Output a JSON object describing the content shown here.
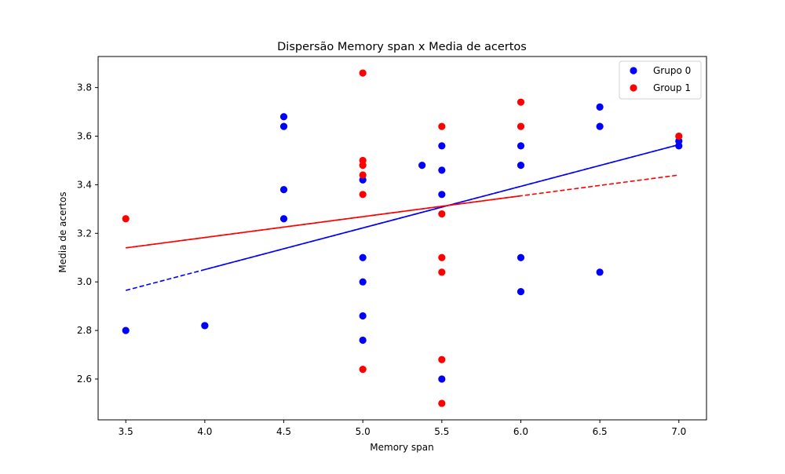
{
  "chart_data": {
    "type": "scatter",
    "title": "Dispersão Memory span x Media de acertos",
    "xlabel": "Memory span",
    "ylabel": "Media de acertos",
    "xlim": [
      3.325,
      7.175
    ],
    "ylim": [
      2.432,
      3.928
    ],
    "xticks": [
      "3.5",
      "4.0",
      "4.5",
      "5.0",
      "5.5",
      "6.0",
      "6.5",
      "7.0"
    ],
    "yticks": [
      "2.6",
      "2.8",
      "3.0",
      "3.2",
      "3.4",
      "3.6",
      "3.8"
    ],
    "grid": false,
    "legend_position": "top-right",
    "series": [
      {
        "name": "Grupo 0",
        "color": "#0000ff",
        "points": [
          [
            3.5,
            2.8
          ],
          [
            4.0,
            2.82
          ],
          [
            4.0,
            2.82
          ],
          [
            4.5,
            3.68
          ],
          [
            4.5,
            3.64
          ],
          [
            4.5,
            3.38
          ],
          [
            4.5,
            3.26
          ],
          [
            5.0,
            3.42
          ],
          [
            5.0,
            3.1
          ],
          [
            5.0,
            3.0
          ],
          [
            5.0,
            2.86
          ],
          [
            5.0,
            2.76
          ],
          [
            5.375,
            3.48
          ],
          [
            5.5,
            3.56
          ],
          [
            5.5,
            3.46
          ],
          [
            5.5,
            3.36
          ],
          [
            5.5,
            2.6
          ],
          [
            6.0,
            3.56
          ],
          [
            6.0,
            3.48
          ],
          [
            6.0,
            3.1
          ],
          [
            6.0,
            2.96
          ],
          [
            6.5,
            3.72
          ],
          [
            6.5,
            3.64
          ],
          [
            6.5,
            3.04
          ],
          [
            7.0,
            3.58
          ],
          [
            7.0,
            3.56
          ]
        ],
        "trend": {
          "x_start": 3.5,
          "x_end": 7.0,
          "y_start": 2.965,
          "y_end": 3.565
        }
      },
      {
        "name": "Group 1",
        "color": "#ff0000",
        "points": [
          [
            3.5,
            3.26
          ],
          [
            5.0,
            3.86
          ],
          [
            5.0,
            3.5
          ],
          [
            5.0,
            3.48
          ],
          [
            5.0,
            3.44
          ],
          [
            5.0,
            3.36
          ],
          [
            5.0,
            2.64
          ],
          [
            5.5,
            3.64
          ],
          [
            5.5,
            3.28
          ],
          [
            5.5,
            3.1
          ],
          [
            5.5,
            3.04
          ],
          [
            5.5,
            2.68
          ],
          [
            5.5,
            2.5
          ],
          [
            6.0,
            3.74
          ],
          [
            6.0,
            3.64
          ],
          [
            7.0,
            3.6
          ]
        ],
        "trend": {
          "x_start": 3.5,
          "x_end": 7.0,
          "y_start": 3.14,
          "y_end": 3.44
        }
      }
    ]
  }
}
